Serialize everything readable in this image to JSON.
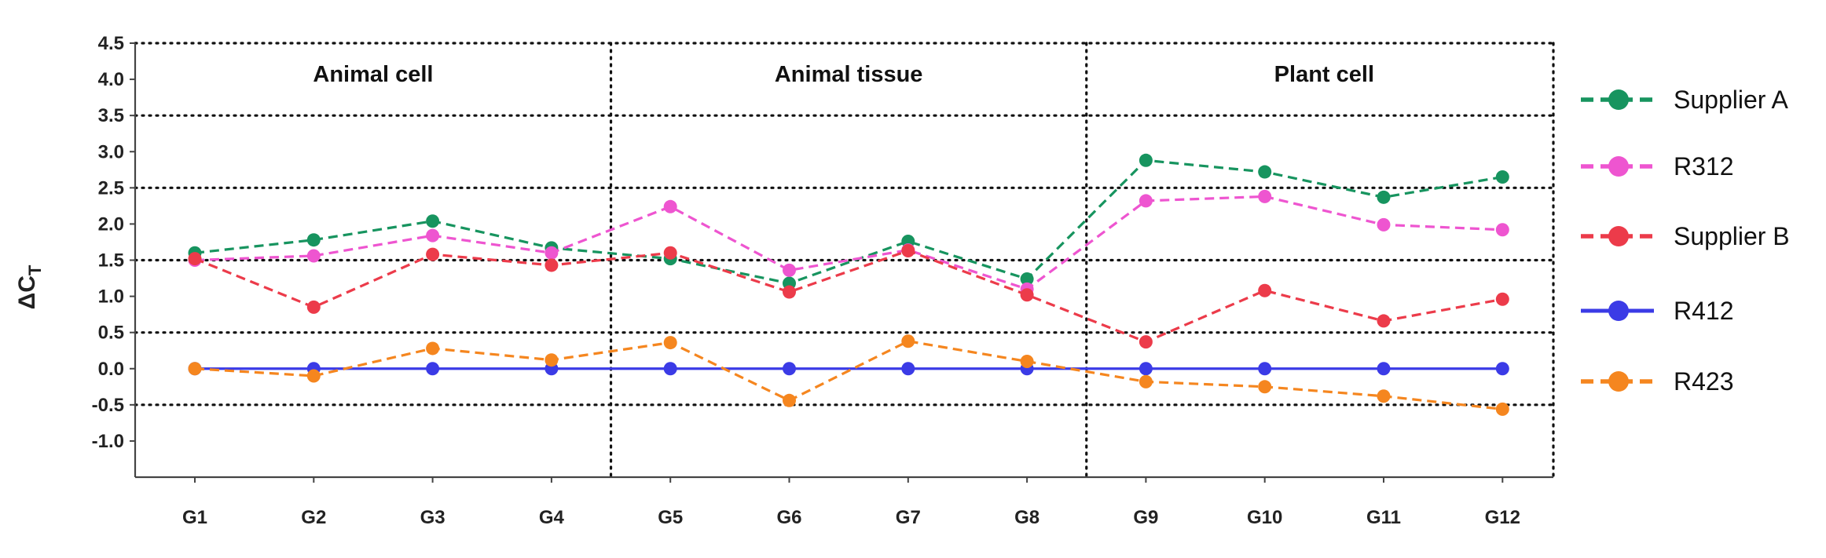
{
  "chart_data": {
    "type": "line",
    "ylabel": "ΔC",
    "ylabel_subscript": "T",
    "ylim": [
      -1.5,
      4.5
    ],
    "yticks": [
      4.5,
      4.0,
      3.5,
      3.0,
      2.5,
      2.0,
      1.5,
      1.0,
      0.5,
      0.0,
      -0.5,
      -1.0
    ],
    "y_gridlines": [
      4.5,
      3.5,
      2.5,
      1.5,
      0.5,
      -0.5
    ],
    "categories": [
      "G1",
      "G2",
      "G3",
      "G4",
      "G5",
      "G6",
      "G7",
      "G8",
      "G9",
      "G10",
      "G11",
      "G12"
    ],
    "groups": [
      {
        "label": "Animal cell",
        "start": 0,
        "end": 3
      },
      {
        "label": "Animal tissue",
        "start": 4,
        "end": 7
      },
      {
        "label": "Plant cell",
        "start": 8,
        "end": 11
      }
    ],
    "legend_position": "right",
    "series": [
      {
        "name": "Supplier A",
        "color": "#17945f",
        "style": "dashed",
        "values": [
          1.6,
          1.78,
          2.04,
          1.67,
          1.52,
          1.18,
          1.76,
          1.24,
          2.88,
          2.72,
          2.37,
          2.65
        ]
      },
      {
        "name": "R312",
        "color": "#ee55d0",
        "style": "dashed",
        "values": [
          1.5,
          1.56,
          1.84,
          1.6,
          2.24,
          1.36,
          1.64,
          1.1,
          2.32,
          2.38,
          1.99,
          1.92
        ]
      },
      {
        "name": "Supplier B",
        "color": "#ec3b4a",
        "style": "dashed",
        "values": [
          1.52,
          0.85,
          1.58,
          1.43,
          1.6,
          1.06,
          1.63,
          1.02,
          0.37,
          1.08,
          0.66,
          0.96
        ]
      },
      {
        "name": "R412",
        "color": "#3b3be6",
        "style": "solid",
        "values": [
          0,
          0,
          0,
          0,
          0,
          0,
          0,
          0,
          0,
          0,
          0,
          0
        ]
      },
      {
        "name": "R423",
        "color": "#f5861f",
        "style": "dashed",
        "values": [
          0,
          -0.1,
          0.28,
          0.12,
          0.36,
          -0.44,
          0.38,
          0.1,
          -0.18,
          -0.25,
          -0.38,
          -0.56
        ]
      }
    ]
  }
}
